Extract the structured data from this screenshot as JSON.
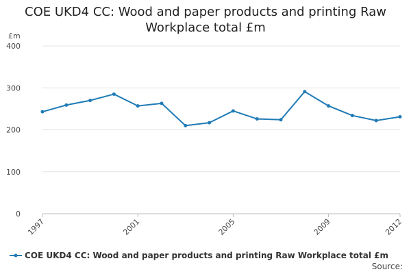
{
  "chart_data": {
    "type": "line",
    "title": "COE UKD4 CC: Wood and paper products and printing Raw Workplace total £m",
    "ylabel": "£m",
    "xlabel": "",
    "ylim": [
      0,
      400
    ],
    "yticks": [
      0,
      100,
      200,
      300,
      400
    ],
    "xlim": [
      1997,
      2012
    ],
    "xticks": [
      1997,
      2001,
      2005,
      2009,
      2012
    ],
    "grid": true,
    "legend_position": "bottom-left",
    "series": [
      {
        "name": "COE UKD4 CC: Wood and paper products and printing Raw Workplace total £m",
        "color": "#1f7bb6",
        "x": [
          1997,
          1998,
          1999,
          2000,
          2001,
          2002,
          2003,
          2004,
          2005,
          2006,
          2007,
          2008,
          2009,
          2010,
          2011,
          2012
        ],
        "values": [
          243,
          259,
          270,
          285,
          257,
          263,
          210,
          217,
          245,
          226,
          224,
          291,
          257,
          234,
          222,
          231
        ]
      }
    ]
  },
  "source_label": "Source:"
}
